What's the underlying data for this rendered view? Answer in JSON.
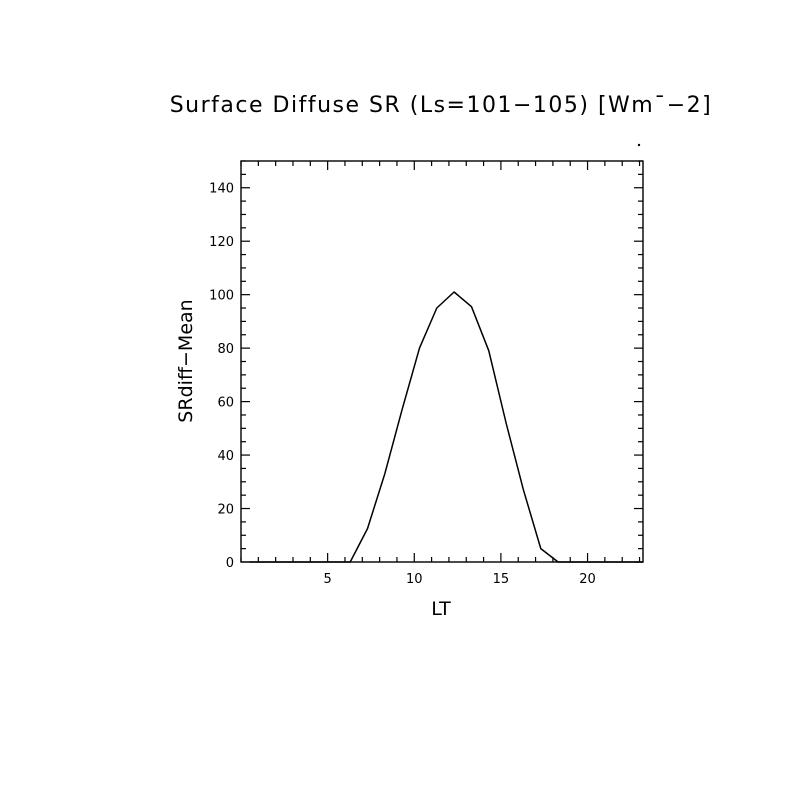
{
  "chart_data": {
    "type": "line",
    "title": "Surface Diffuse SR (Ls=101−105) [Wm¯−2]",
    "xlabel": "LT",
    "ylabel": "SRdiff−Mean",
    "xlim": [
      0,
      23.2
    ],
    "ylim": [
      0,
      150
    ],
    "x_ticks": [
      5,
      10,
      15,
      20
    ],
    "y_ticks": [
      0,
      20,
      40,
      60,
      80,
      100,
      120,
      140
    ],
    "x_minor_step": 1,
    "y_minor_step": 5,
    "grid": false,
    "series": [
      {
        "x": [
          0.5,
          1.5,
          2.5,
          3.5,
          4.5,
          5.5,
          6.3,
          7.3,
          8.3,
          9.3,
          10.3,
          11.3,
          12.3,
          13.3,
          14.3,
          15.3,
          16.3,
          17.3,
          18.3,
          19.3,
          20.3,
          21.3,
          22.3,
          23.2
        ],
        "y": [
          0,
          0,
          0,
          0,
          0,
          0,
          0,
          12.5,
          33,
          57,
          80,
          95,
          101,
          95.5,
          79,
          52,
          27,
          5,
          0,
          0,
          0,
          0,
          0,
          0
        ]
      }
    ]
  }
}
